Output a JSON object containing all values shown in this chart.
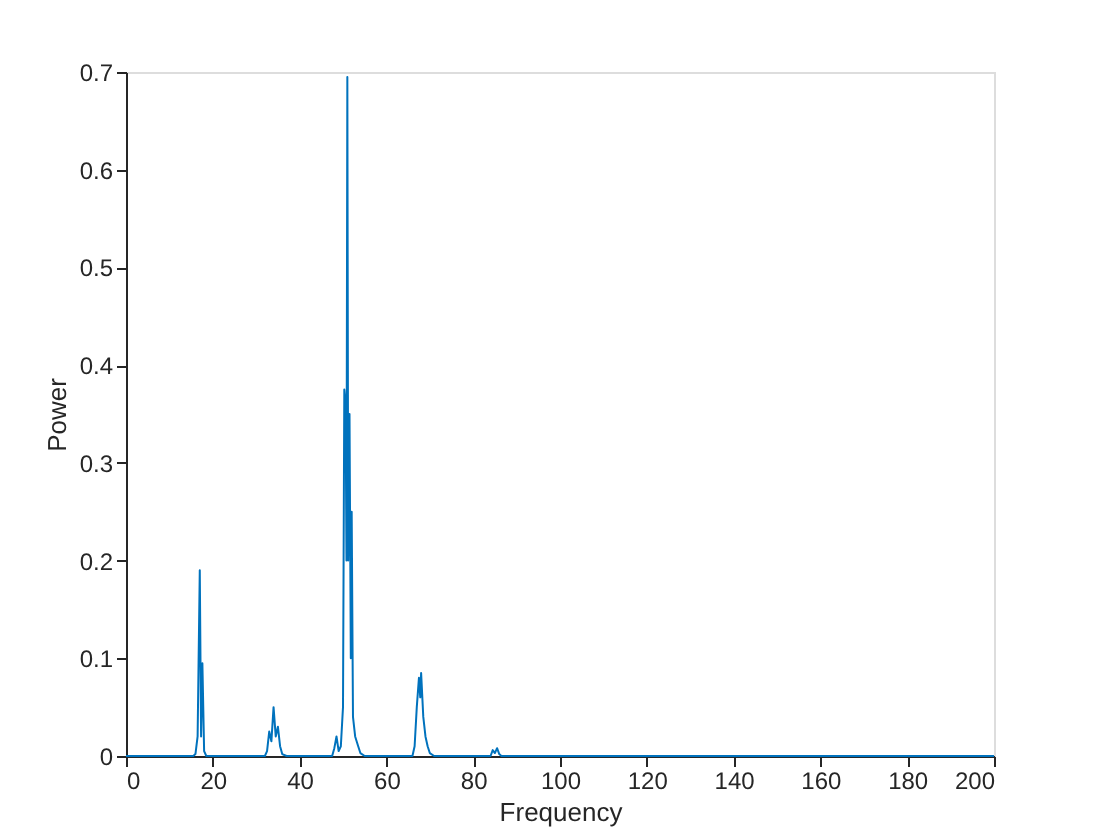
{
  "chart_data": {
    "type": "line",
    "xlabel": "Frequency",
    "ylabel": "Power",
    "xlim": [
      0,
      200
    ],
    "xticks": [
      0,
      20,
      40,
      60,
      80,
      100,
      120,
      140,
      160,
      180,
      200
    ],
    "ylim": [
      0,
      0.7
    ],
    "yticks": [
      0,
      0.1,
      0.2,
      0.3,
      0.4,
      0.5,
      0.6,
      0.7
    ],
    "grid": false,
    "series": [
      {
        "color": "#0072bd",
        "x": [
          0,
          15.5,
          16,
          16.5,
          17,
          17.3,
          17.6,
          18,
          18.5,
          20,
          32,
          32.5,
          33,
          33.5,
          34,
          34.5,
          35,
          35.5,
          36,
          37,
          47.5,
          48,
          48.5,
          49,
          49.5,
          50,
          50.3,
          50.6,
          50.8,
          51,
          51.2,
          51.5,
          51.8,
          52,
          52.3,
          52.8,
          53.5,
          54,
          55,
          66,
          66.5,
          67,
          67.5,
          67.8,
          68,
          68.5,
          69,
          69.5,
          70,
          71,
          84,
          84.5,
          85,
          85.5,
          86,
          86.5,
          100,
          200
        ],
        "values": [
          0,
          0,
          0.002,
          0.02,
          0.19,
          0.02,
          0.095,
          0.005,
          0,
          0,
          0,
          0.005,
          0.025,
          0.015,
          0.05,
          0.02,
          0.03,
          0.01,
          0.002,
          0,
          0,
          0.008,
          0.02,
          0.005,
          0.01,
          0.05,
          0.375,
          0.36,
          0.2,
          0.695,
          0.2,
          0.35,
          0.1,
          0.25,
          0.04,
          0.02,
          0.01,
          0.003,
          0,
          0,
          0.01,
          0.05,
          0.08,
          0.06,
          0.085,
          0.04,
          0.02,
          0.01,
          0.003,
          0,
          0,
          0.006,
          0.003,
          0.008,
          0.002,
          0,
          0,
          0
        ]
      }
    ]
  }
}
